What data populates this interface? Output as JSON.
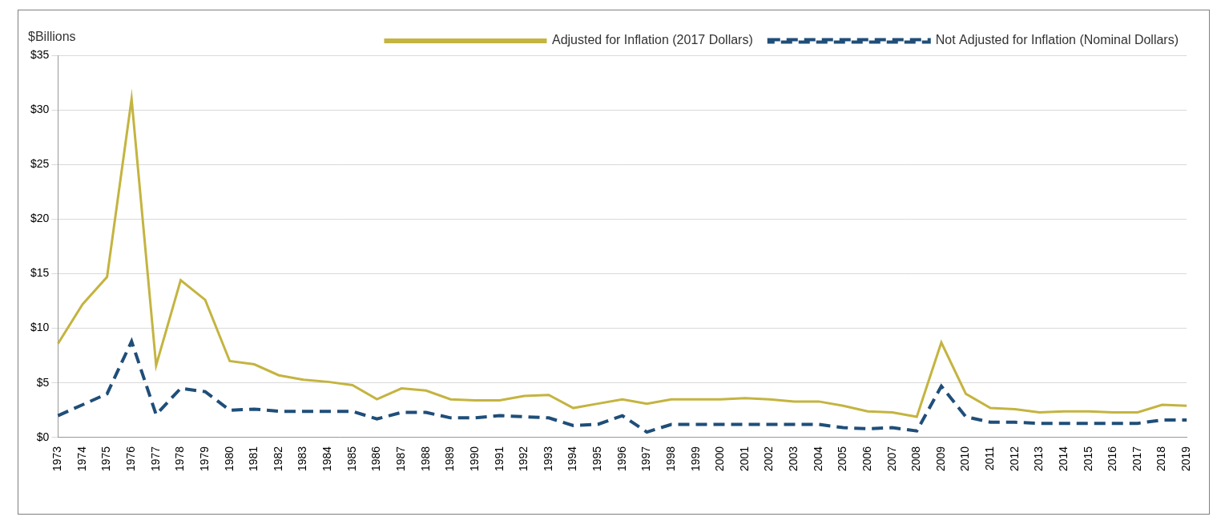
{
  "chart_data": {
    "type": "line",
    "ylabel": "$Billions",
    "categories": [
      "1973",
      "1974",
      "1975",
      "1976",
      "1977",
      "1978",
      "1979",
      "1980",
      "1981",
      "1982",
      "1983",
      "1984",
      "1985",
      "1986",
      "1987",
      "1988",
      "1989",
      "1990",
      "1991",
      "1992",
      "1993",
      "1994",
      "1995",
      "1996",
      "1997",
      "1998",
      "1999",
      "2000",
      "2001",
      "2002",
      "2003",
      "2004",
      "2005",
      "2006",
      "2007",
      "2008",
      "2009",
      "2010",
      "2011",
      "2012",
      "2013",
      "2014",
      "2015",
      "2016",
      "2017",
      "2018",
      "2019"
    ],
    "series": [
      {
        "name": "Adjusted for Inflation (2017 Dollars)",
        "color": "#c4b440",
        "line_style": "solid",
        "values": [
          8.6,
          12.2,
          14.7,
          31.0,
          6.6,
          14.4,
          12.6,
          7.0,
          6.7,
          5.7,
          5.3,
          5.1,
          4.8,
          3.5,
          4.5,
          4.3,
          3.5,
          3.4,
          3.4,
          3.8,
          3.9,
          2.7,
          3.1,
          3.5,
          3.1,
          3.5,
          3.5,
          3.5,
          3.6,
          3.5,
          3.3,
          3.3,
          2.9,
          2.4,
          2.3,
          1.9,
          8.7,
          4.0,
          2.7,
          2.6,
          2.3,
          2.4,
          2.4,
          2.3,
          2.3,
          3.0,
          2.9
        ]
      },
      {
        "name": "Not Adjusted for Inflation (Nominal Dollars)",
        "color": "#1f4e79",
        "line_style": "dashed",
        "values": [
          2.0,
          3.0,
          4.0,
          8.8,
          2.1,
          4.5,
          4.2,
          2.5,
          2.6,
          2.4,
          2.4,
          2.4,
          2.4,
          1.7,
          2.3,
          2.3,
          1.8,
          1.8,
          2.0,
          1.9,
          1.8,
          1.1,
          1.2,
          2.0,
          0.5,
          1.2,
          1.2,
          1.2,
          1.2,
          1.2,
          1.2,
          1.2,
          0.9,
          0.8,
          0.9,
          0.6,
          4.7,
          1.9,
          1.4,
          1.4,
          1.3,
          1.3,
          1.3,
          1.3,
          1.3,
          1.6,
          1.6
        ]
      }
    ],
    "ylim": [
      0,
      35
    ],
    "yticks": [
      {
        "value": 0,
        "label": "$0"
      },
      {
        "value": 5,
        "label": "$5"
      },
      {
        "value": 10,
        "label": "$10"
      },
      {
        "value": 15,
        "label": "$15"
      },
      {
        "value": 20,
        "label": "$20"
      },
      {
        "value": 25,
        "label": "$25"
      },
      {
        "value": 30,
        "label": "$30"
      },
      {
        "value": 35,
        "label": "$35"
      }
    ],
    "grid": true,
    "legend": "top"
  }
}
